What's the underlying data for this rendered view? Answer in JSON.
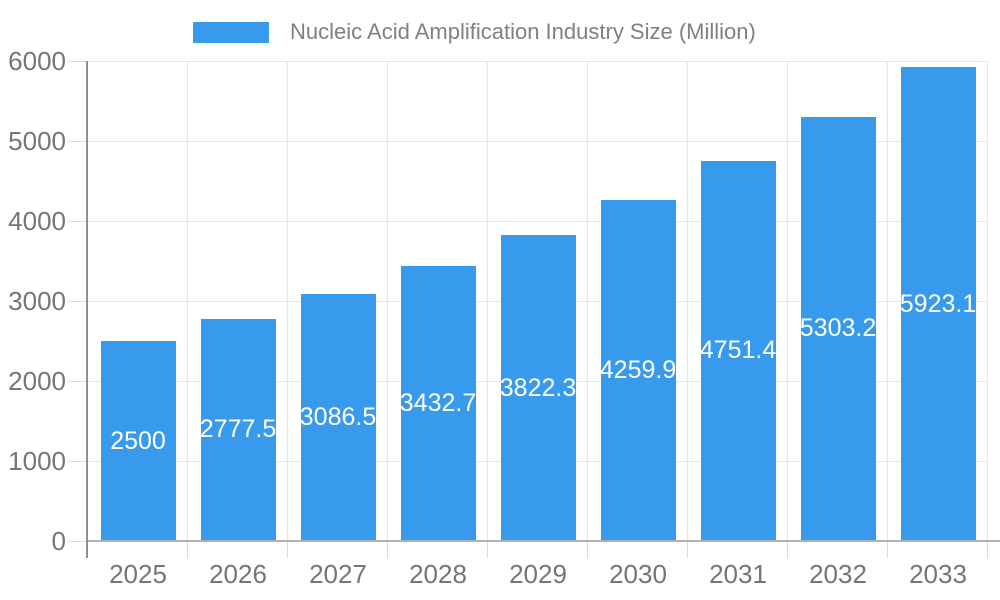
{
  "chart_data": {
    "type": "bar",
    "title": "Nucleic Acid Amplification Industry Size (Million)",
    "categories": [
      "2025",
      "2026",
      "2027",
      "2028",
      "2029",
      "2030",
      "2031",
      "2032",
      "2033"
    ],
    "series": [
      {
        "name": "Nucleic Acid Amplification Industry Size (Million)",
        "values": [
          2500,
          2777.5,
          3086.5,
          3432.7,
          3822.3,
          4259.9,
          4751.4,
          5303.2,
          5923.1
        ],
        "value_labels": [
          "2500",
          "2777.5",
          "3086.5",
          "3432.7",
          "3822.3",
          "4259.9",
          "4751.4",
          "5303.2",
          "5923.1"
        ]
      }
    ],
    "xlabel": "",
    "ylabel": "",
    "ylim": [
      0,
      6000
    ],
    "yticks": [
      0,
      1000,
      2000,
      3000,
      4000,
      5000,
      6000
    ],
    "grid": "horizontal and vertical light gray gridlines",
    "legend_position": "top",
    "value_label_style": "white, centered inside bars"
  },
  "legend": {
    "label": "Nucleic Acid Amplification Industry Size (Million)",
    "swatch_color": "#389AEC"
  },
  "colors": {
    "bar": "#389AEC",
    "axis_label": "#757575",
    "legend_text": "#808080",
    "gridline": "#e6e6e6",
    "tick": "#d9d9d9",
    "y_axis_line": "#909090",
    "x_axis_line": "#b0b0b0",
    "value_label": "#ffffff",
    "background": "#ffffff"
  }
}
